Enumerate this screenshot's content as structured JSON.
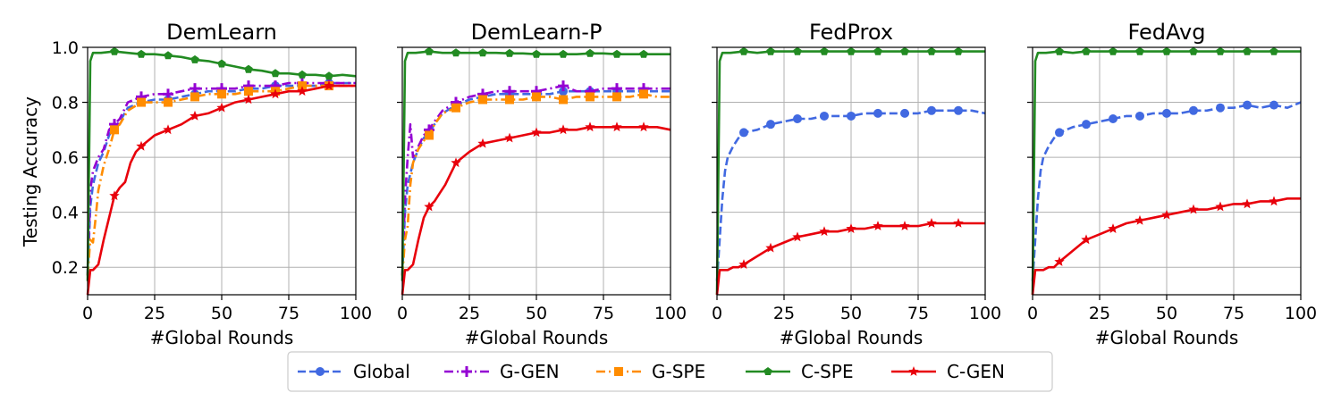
{
  "chart_data": {
    "type": "line",
    "ylabel": "Testing Accuracy",
    "xlabel": "#Global Rounds",
    "xlim": [
      0,
      100
    ],
    "ylim": [
      0.1,
      1.0
    ],
    "xticks": [
      "0",
      "25",
      "50",
      "75",
      "100"
    ],
    "yticks": [
      "0.2",
      "0.4",
      "0.6",
      "0.8",
      "1.0"
    ],
    "grid": true,
    "legend_placement": "bottom-center",
    "series_styles": [
      {
        "name": "Global",
        "color": "#4169e1",
        "dash": "dashed",
        "marker": "circle"
      },
      {
        "name": "G-GEN",
        "color": "#9400d3",
        "dash": "dashdot",
        "marker": "plus"
      },
      {
        "name": "G-SPE",
        "color": "#ff8c00",
        "dash": "dashdot",
        "marker": "square"
      },
      {
        "name": "C-SPE",
        "color": "#228b22",
        "dash": "solid",
        "marker": "pentagon"
      },
      {
        "name": "C-GEN",
        "color": "#e8000b",
        "dash": "solid",
        "marker": "star"
      }
    ],
    "panels": [
      {
        "title": "DemLearn",
        "series": [
          {
            "name": "Global",
            "x": [
              0,
              1,
              2,
              4,
              6,
              8,
              10,
              12,
              15,
              20,
              25,
              30,
              35,
              40,
              45,
              50,
              55,
              60,
              65,
              70,
              75,
              80,
              85,
              90,
              95,
              100
            ],
            "values": [
              0.17,
              0.42,
              0.5,
              0.58,
              0.62,
              0.68,
              0.71,
              0.73,
              0.78,
              0.8,
              0.81,
              0.81,
              0.82,
              0.83,
              0.84,
              0.84,
              0.84,
              0.85,
              0.85,
              0.86,
              0.86,
              0.86,
              0.86,
              0.87,
              0.87,
              0.87
            ]
          },
          {
            "name": "G-GEN",
            "x": [
              0,
              1,
              2,
              4,
              6,
              8,
              10,
              12,
              15,
              20,
              25,
              30,
              35,
              40,
              45,
              50,
              55,
              60,
              65,
              70,
              75,
              80,
              85,
              90,
              95,
              100
            ],
            "values": [
              0.17,
              0.48,
              0.55,
              0.6,
              0.63,
              0.7,
              0.72,
              0.74,
              0.8,
              0.82,
              0.83,
              0.83,
              0.84,
              0.85,
              0.85,
              0.85,
              0.85,
              0.86,
              0.86,
              0.86,
              0.87,
              0.87,
              0.87,
              0.87,
              0.87,
              0.87
            ]
          },
          {
            "name": "G-SPE",
            "x": [
              0,
              1,
              2,
              3,
              4,
              6,
              8,
              10,
              12,
              15,
              20,
              25,
              30,
              35,
              40,
              45,
              50,
              55,
              60,
              65,
              70,
              75,
              80,
              85,
              90,
              95,
              100
            ],
            "values": [
              0.17,
              0.3,
              0.29,
              0.38,
              0.48,
              0.57,
              0.63,
              0.7,
              0.72,
              0.77,
              0.8,
              0.8,
              0.8,
              0.81,
              0.82,
              0.83,
              0.83,
              0.83,
              0.84,
              0.84,
              0.84,
              0.85,
              0.86,
              0.86,
              0.86,
              0.86,
              0.86
            ]
          },
          {
            "name": "C-SPE",
            "x": [
              0,
              1,
              2,
              5,
              10,
              15,
              20,
              25,
              30,
              35,
              40,
              45,
              50,
              55,
              60,
              65,
              70,
              75,
              80,
              85,
              90,
              95,
              100
            ],
            "values": [
              0.15,
              0.95,
              0.98,
              0.98,
              0.985,
              0.98,
              0.975,
              0.975,
              0.97,
              0.965,
              0.955,
              0.95,
              0.94,
              0.93,
              0.92,
              0.915,
              0.905,
              0.905,
              0.9,
              0.9,
              0.895,
              0.9,
              0.895
            ]
          },
          {
            "name": "C-GEN",
            "x": [
              0,
              1,
              2,
              4,
              6,
              8,
              10,
              12,
              14,
              16,
              18,
              20,
              25,
              30,
              35,
              40,
              45,
              50,
              55,
              60,
              65,
              70,
              75,
              80,
              85,
              90,
              95,
              100
            ],
            "values": [
              0.1,
              0.19,
              0.19,
              0.21,
              0.3,
              0.38,
              0.46,
              0.49,
              0.51,
              0.58,
              0.62,
              0.64,
              0.68,
              0.7,
              0.72,
              0.75,
              0.76,
              0.78,
              0.8,
              0.81,
              0.82,
              0.83,
              0.84,
              0.84,
              0.85,
              0.86,
              0.86,
              0.86
            ]
          }
        ]
      },
      {
        "title": "DemLearn-P",
        "series": [
          {
            "name": "Global",
            "x": [
              0,
              1,
              2,
              4,
              6,
              8,
              10,
              12,
              15,
              20,
              25,
              30,
              35,
              40,
              45,
              50,
              55,
              60,
              65,
              70,
              75,
              80,
              85,
              90,
              95,
              100
            ],
            "values": [
              0.17,
              0.4,
              0.5,
              0.58,
              0.63,
              0.67,
              0.69,
              0.72,
              0.76,
              0.79,
              0.81,
              0.82,
              0.83,
              0.83,
              0.83,
              0.83,
              0.83,
              0.84,
              0.84,
              0.84,
              0.84,
              0.84,
              0.84,
              0.84,
              0.84,
              0.84
            ]
          },
          {
            "name": "G-GEN",
            "x": [
              0,
              1,
              2,
              3,
              4,
              6,
              8,
              10,
              12,
              15,
              20,
              25,
              30,
              35,
              40,
              45,
              50,
              55,
              60,
              65,
              70,
              75,
              80,
              85,
              90,
              95,
              100
            ],
            "values": [
              0.17,
              0.45,
              0.6,
              0.72,
              0.6,
              0.64,
              0.68,
              0.7,
              0.73,
              0.77,
              0.8,
              0.82,
              0.83,
              0.84,
              0.84,
              0.84,
              0.84,
              0.85,
              0.86,
              0.84,
              0.84,
              0.85,
              0.85,
              0.85,
              0.85,
              0.85,
              0.85
            ]
          },
          {
            "name": "G-SPE",
            "x": [
              0,
              1,
              2,
              3,
              4,
              6,
              8,
              10,
              12,
              15,
              20,
              25,
              30,
              35,
              40,
              45,
              50,
              55,
              60,
              65,
              70,
              75,
              80,
              85,
              90,
              95,
              100
            ],
            "values": [
              0.17,
              0.3,
              0.35,
              0.5,
              0.58,
              0.63,
              0.66,
              0.68,
              0.72,
              0.76,
              0.78,
              0.8,
              0.81,
              0.81,
              0.81,
              0.81,
              0.82,
              0.82,
              0.81,
              0.82,
              0.82,
              0.82,
              0.82,
              0.82,
              0.83,
              0.82,
              0.82
            ]
          },
          {
            "name": "C-SPE",
            "x": [
              0,
              1,
              2,
              5,
              10,
              15,
              20,
              25,
              30,
              35,
              40,
              45,
              50,
              55,
              60,
              65,
              70,
              75,
              80,
              85,
              90,
              95,
              100
            ],
            "values": [
              0.15,
              0.95,
              0.98,
              0.98,
              0.985,
              0.98,
              0.98,
              0.98,
              0.98,
              0.98,
              0.978,
              0.978,
              0.975,
              0.975,
              0.975,
              0.975,
              0.978,
              0.978,
              0.975,
              0.975,
              0.975,
              0.975,
              0.975
            ]
          },
          {
            "name": "C-GEN",
            "x": [
              0,
              1,
              2,
              4,
              6,
              8,
              10,
              12,
              14,
              16,
              18,
              20,
              25,
              30,
              35,
              40,
              45,
              50,
              55,
              60,
              65,
              70,
              75,
              80,
              85,
              90,
              95,
              100
            ],
            "values": [
              0.1,
              0.19,
              0.19,
              0.21,
              0.3,
              0.38,
              0.42,
              0.44,
              0.47,
              0.5,
              0.54,
              0.58,
              0.62,
              0.65,
              0.66,
              0.67,
              0.68,
              0.69,
              0.69,
              0.7,
              0.7,
              0.71,
              0.71,
              0.71,
              0.71,
              0.71,
              0.71,
              0.7
            ]
          }
        ]
      },
      {
        "title": "FedProx",
        "series": [
          {
            "name": "Global",
            "x": [
              0,
              1,
              2,
              3,
              4,
              6,
              8,
              10,
              15,
              20,
              25,
              30,
              35,
              40,
              45,
              50,
              55,
              60,
              65,
              70,
              75,
              80,
              85,
              90,
              95,
              100
            ],
            "values": [
              0.15,
              0.3,
              0.45,
              0.55,
              0.6,
              0.64,
              0.67,
              0.69,
              0.7,
              0.72,
              0.73,
              0.74,
              0.74,
              0.75,
              0.75,
              0.75,
              0.76,
              0.76,
              0.76,
              0.76,
              0.76,
              0.77,
              0.77,
              0.77,
              0.77,
              0.76
            ]
          },
          {
            "name": "C-SPE",
            "x": [
              0,
              1,
              2,
              5,
              10,
              15,
              20,
              25,
              30,
              35,
              40,
              45,
              50,
              55,
              60,
              65,
              70,
              75,
              80,
              85,
              90,
              95,
              100
            ],
            "values": [
              0.1,
              0.95,
              0.98,
              0.98,
              0.985,
              0.98,
              0.985,
              0.985,
              0.985,
              0.985,
              0.985,
              0.985,
              0.985,
              0.985,
              0.985,
              0.985,
              0.985,
              0.985,
              0.985,
              0.985,
              0.985,
              0.985,
              0.985
            ]
          },
          {
            "name": "C-GEN",
            "x": [
              0,
              1,
              2,
              4,
              6,
              8,
              10,
              15,
              20,
              25,
              30,
              35,
              40,
              45,
              50,
              55,
              60,
              65,
              70,
              75,
              80,
              85,
              90,
              95,
              100
            ],
            "values": [
              0.1,
              0.19,
              0.19,
              0.19,
              0.2,
              0.2,
              0.21,
              0.24,
              0.27,
              0.29,
              0.31,
              0.32,
              0.33,
              0.33,
              0.34,
              0.34,
              0.35,
              0.35,
              0.35,
              0.35,
              0.36,
              0.36,
              0.36,
              0.36,
              0.36
            ]
          }
        ]
      },
      {
        "title": "FedAvg",
        "series": [
          {
            "name": "Global",
            "x": [
              0,
              1,
              2,
              3,
              4,
              6,
              8,
              10,
              15,
              20,
              25,
              30,
              35,
              40,
              45,
              50,
              55,
              60,
              65,
              70,
              75,
              80,
              85,
              90,
              95,
              100
            ],
            "values": [
              0.15,
              0.3,
              0.45,
              0.55,
              0.6,
              0.64,
              0.67,
              0.69,
              0.71,
              0.72,
              0.73,
              0.74,
              0.75,
              0.75,
              0.76,
              0.76,
              0.76,
              0.77,
              0.77,
              0.78,
              0.78,
              0.79,
              0.78,
              0.79,
              0.78,
              0.8
            ]
          },
          {
            "name": "C-SPE",
            "x": [
              0,
              1,
              2,
              5,
              10,
              15,
              20,
              25,
              30,
              35,
              40,
              45,
              50,
              55,
              60,
              65,
              70,
              75,
              80,
              85,
              90,
              95,
              100
            ],
            "values": [
              0.1,
              0.95,
              0.98,
              0.98,
              0.985,
              0.98,
              0.985,
              0.985,
              0.985,
              0.985,
              0.985,
              0.985,
              0.985,
              0.985,
              0.985,
              0.985,
              0.985,
              0.985,
              0.985,
              0.985,
              0.985,
              0.985,
              0.985
            ]
          },
          {
            "name": "C-GEN",
            "x": [
              0,
              1,
              2,
              4,
              6,
              8,
              10,
              15,
              20,
              25,
              30,
              35,
              40,
              45,
              50,
              55,
              60,
              65,
              70,
              75,
              80,
              85,
              90,
              95,
              100
            ],
            "values": [
              0.1,
              0.19,
              0.19,
              0.19,
              0.2,
              0.2,
              0.22,
              0.26,
              0.3,
              0.32,
              0.34,
              0.36,
              0.37,
              0.38,
              0.39,
              0.4,
              0.41,
              0.41,
              0.42,
              0.43,
              0.43,
              0.44,
              0.44,
              0.45,
              0.45
            ]
          }
        ]
      }
    ]
  }
}
